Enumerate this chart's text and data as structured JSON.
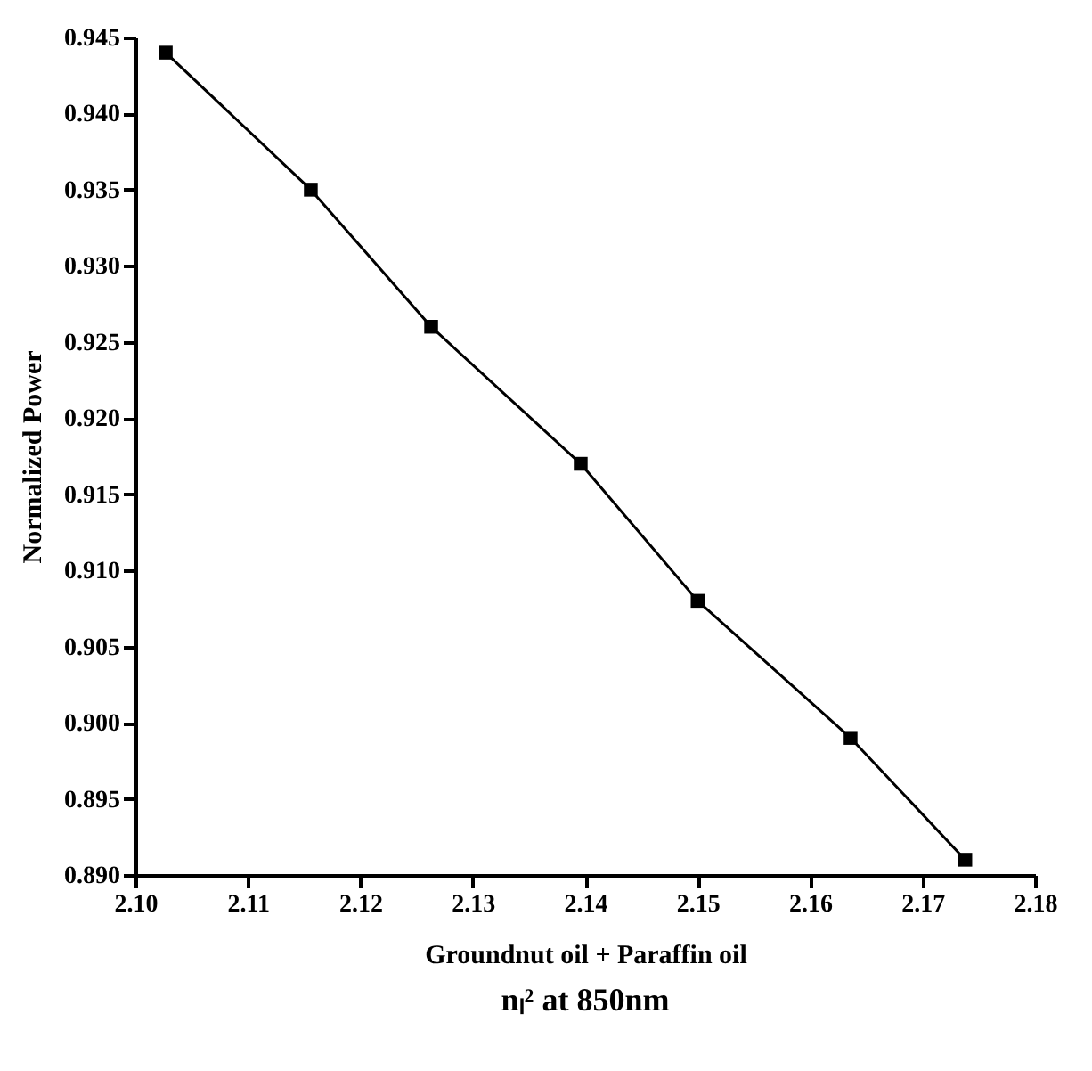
{
  "chart_data": {
    "type": "line",
    "xlabel": "Groundnut oil + Paraffin oil",
    "ylabel": "Normalized Power",
    "annotations": [
      "nₗ² at 850nm"
    ],
    "x": [
      2.1027,
      2.1156,
      2.1263,
      2.1396,
      2.15,
      2.1636,
      2.1738
    ],
    "series": [
      {
        "color": "#000000",
        "values": [
          0.944,
          0.935,
          0.926,
          0.917,
          0.908,
          0.899,
          0.891
        ]
      }
    ],
    "marker": "square",
    "line_style": "solid",
    "grid": false,
    "legend": false,
    "xlim": [
      2.1,
      2.18
    ],
    "xticks": [
      {
        "value": 2.1,
        "label": "2.10"
      },
      2.11,
      2.12,
      2.13,
      2.14,
      2.15,
      2.16,
      2.17,
      {
        "value": 2.18,
        "label": "2.18"
      }
    ],
    "ylim": [
      0.89,
      0.945
    ],
    "yticks": [
      {
        "value": 0.89,
        "label": "0.890"
      },
      0.895,
      {
        "value": 0.9,
        "label": "0.900"
      },
      0.905,
      {
        "value": 0.91,
        "label": "0.910"
      },
      0.915,
      {
        "value": 0.92,
        "label": "0.920"
      },
      0.925,
      {
        "value": 0.93,
        "label": "0.930"
      },
      0.935,
      {
        "value": 0.94,
        "label": "0.940"
      },
      0.945
    ]
  }
}
